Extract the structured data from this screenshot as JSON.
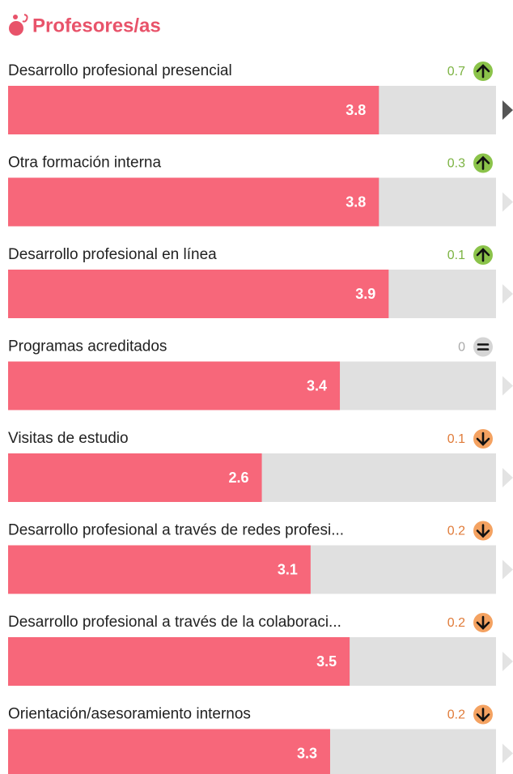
{
  "chart_data": {
    "type": "bar",
    "title": "Profesores/as",
    "categories": [
      "Desarrollo profesional presencial",
      "Otra formación interna",
      "Desarrollo profesional en línea",
      "Programas acreditados",
      "Visitas de estudio",
      "Desarrollo profesional a través de redes profesi...",
      "Desarrollo profesional a través de la colaboraci...",
      "Orientación/asesoramiento internos"
    ],
    "values": [
      3.8,
      3.8,
      3.9,
      3.4,
      2.6,
      3.1,
      3.5,
      3.3
    ],
    "changes": [
      0.7,
      0.3,
      0.1,
      0.0,
      0.1,
      0.2,
      0.2,
      0.2
    ],
    "change_directions": [
      "up",
      "up",
      "up",
      "equal",
      "down",
      "down",
      "down",
      "down"
    ],
    "color": "#f7677a",
    "track_color": "#e0e0e0",
    "xlim": [
      0,
      5
    ]
  }
}
